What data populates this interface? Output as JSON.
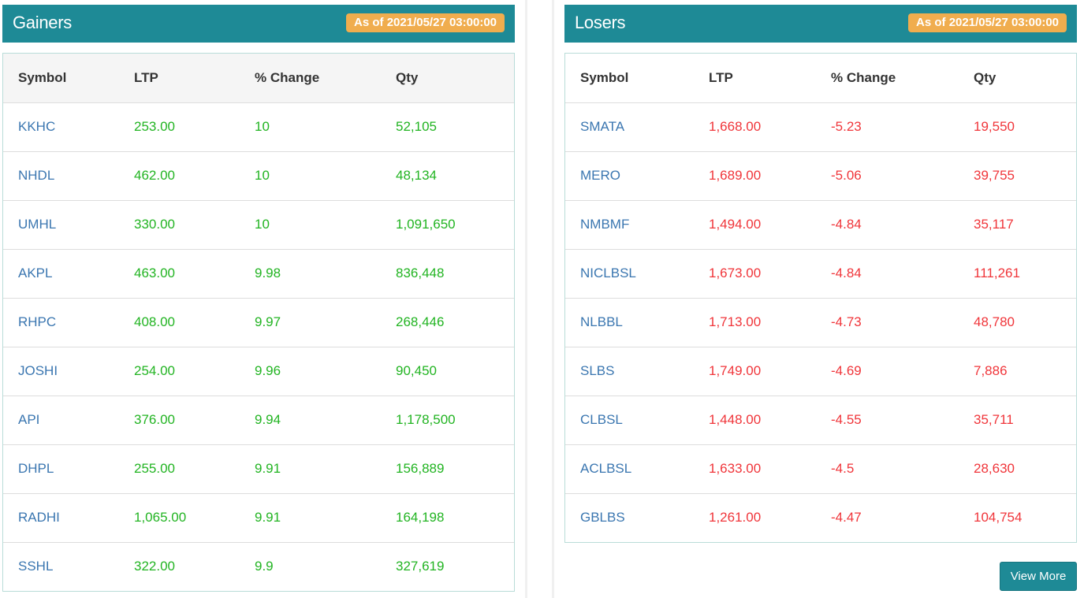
{
  "gainers": {
    "title": "Gainers",
    "as_of": "As of 2021/05/27 03:00:00",
    "columns": [
      "Symbol",
      "LTP",
      "% Change",
      "Qty"
    ],
    "rows": [
      {
        "symbol": "KKHC",
        "ltp": "253.00",
        "change": "10",
        "qty": "52,105"
      },
      {
        "symbol": "NHDL",
        "ltp": "462.00",
        "change": "10",
        "qty": "48,134"
      },
      {
        "symbol": "UMHL",
        "ltp": "330.00",
        "change": "10",
        "qty": "1,091,650"
      },
      {
        "symbol": "AKPL",
        "ltp": "463.00",
        "change": "9.98",
        "qty": "836,448"
      },
      {
        "symbol": "RHPC",
        "ltp": "408.00",
        "change": "9.97",
        "qty": "268,446"
      },
      {
        "symbol": "JOSHI",
        "ltp": "254.00",
        "change": "9.96",
        "qty": "90,450"
      },
      {
        "symbol": "API",
        "ltp": "376.00",
        "change": "9.94",
        "qty": "1,178,500"
      },
      {
        "symbol": "DHPL",
        "ltp": "255.00",
        "change": "9.91",
        "qty": "156,889"
      },
      {
        "symbol": "RADHI",
        "ltp": "1,065.00",
        "change": "9.91",
        "qty": "164,198"
      },
      {
        "symbol": "SSHL",
        "ltp": "322.00",
        "change": "9.9",
        "qty": "327,619"
      }
    ]
  },
  "losers": {
    "title": "Losers",
    "as_of": "As of 2021/05/27 03:00:00",
    "columns": [
      "Symbol",
      "LTP",
      "% Change",
      "Qty"
    ],
    "rows": [
      {
        "symbol": "SMATA",
        "ltp": "1,668.00",
        "change": "-5.23",
        "qty": "19,550"
      },
      {
        "symbol": "MERO",
        "ltp": "1,689.00",
        "change": "-5.06",
        "qty": "39,755"
      },
      {
        "symbol": "NMBMF",
        "ltp": "1,494.00",
        "change": "-4.84",
        "qty": "35,117"
      },
      {
        "symbol": "NICLBSL",
        "ltp": "1,673.00",
        "change": "-4.84",
        "qty": "111,261"
      },
      {
        "symbol": "NLBBL",
        "ltp": "1,713.00",
        "change": "-4.73",
        "qty": "48,780"
      },
      {
        "symbol": "SLBS",
        "ltp": "1,749.00",
        "change": "-4.69",
        "qty": "7,886"
      },
      {
        "symbol": "CLBSL",
        "ltp": "1,448.00",
        "change": "-4.55",
        "qty": "35,711"
      },
      {
        "symbol": "ACLBSL",
        "ltp": "1,633.00",
        "change": "-4.5",
        "qty": "28,630"
      },
      {
        "symbol": "GBLBS",
        "ltp": "1,261.00",
        "change": "-4.47",
        "qty": "104,754"
      }
    ],
    "view_more_label": "View More"
  },
  "colors": {
    "header_bg": "#1e8a96",
    "badge_bg": "#f0ad4e",
    "gain": "#22b422",
    "loss": "#f0353a",
    "symbol_link": "#3a76b0"
  }
}
